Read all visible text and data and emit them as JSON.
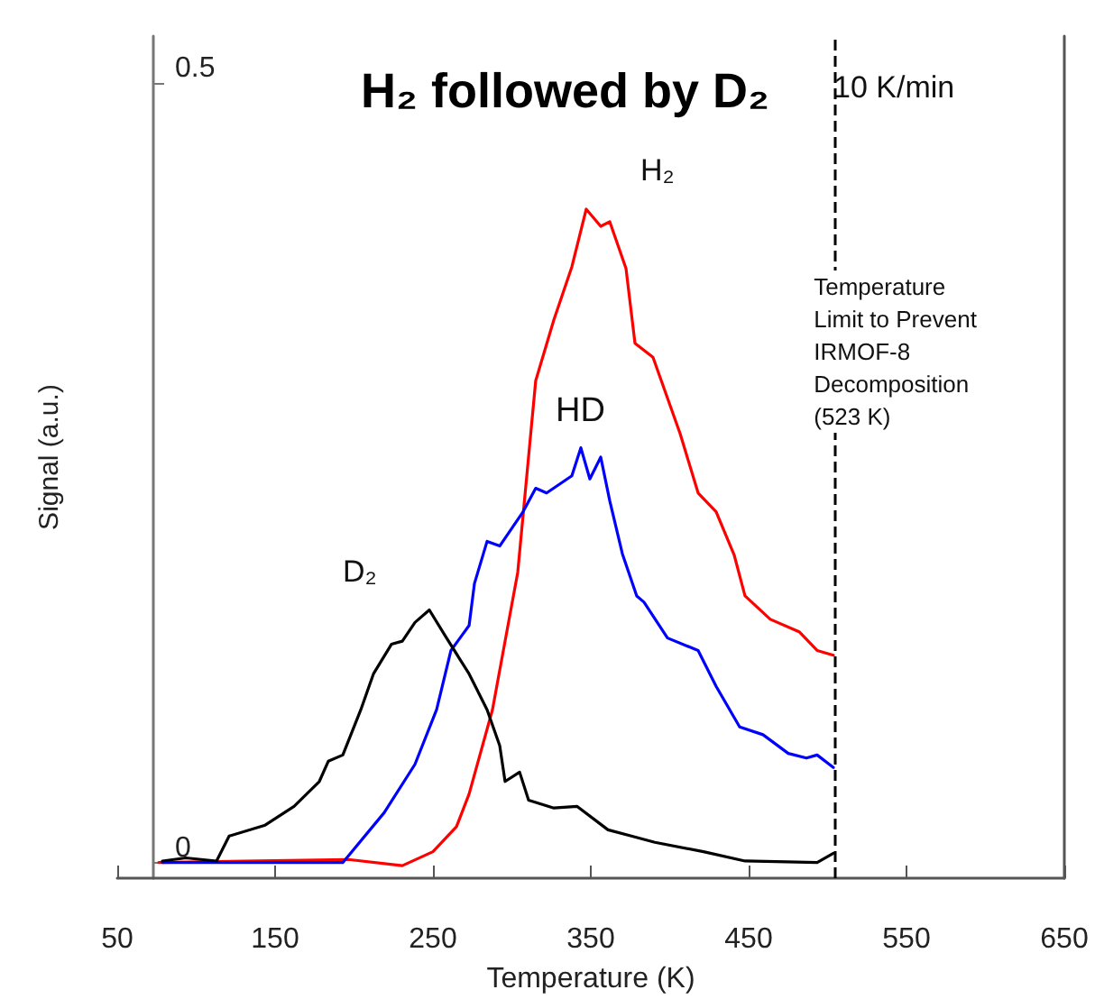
{
  "chart_data": {
    "type": "line",
    "title": "H₂ followed by D₂",
    "xlabel": "Temperature (K)",
    "ylabel": "Signal (a.u.)",
    "annotations": [
      "10 K/min"
    ],
    "xlim": [
      50,
      650
    ],
    "xticks": [
      50,
      150,
      250,
      350,
      450,
      550,
      650
    ],
    "ylim": [
      -0.01,
      0.53
    ],
    "yticks": [
      0,
      0.5
    ],
    "grid": false,
    "legend": false,
    "marker": "none",
    "line_style": "solid",
    "ref_lines": [
      {
        "axis": "x",
        "value": 505,
        "label": "Temperature\nLimit to Prevent\nIRMOF-8\nDecomposition\n(523 K)",
        "color": "#000000",
        "line_style": "dashed"
      }
    ],
    "series": [
      {
        "name": "H₂",
        "color": "#ff0000",
        "x": [
          76.3,
          196.3,
          230.6,
          250,
          264.9,
          272.9,
          287.7,
          303.7,
          315.1,
          326.6,
          338,
          347.1,
          356.3,
          362,
          372.3,
          378,
          389.4,
          406.6,
          418,
          429.4,
          440.9,
          447.7,
          463.7,
          482,
          493.4,
          503.7
        ],
        "values": [
          0,
          0.002,
          -0.002,
          0.007,
          0.023,
          0.044,
          0.098,
          0.186,
          0.309,
          0.348,
          0.382,
          0.419,
          0.408,
          0.411,
          0.381,
          0.333,
          0.324,
          0.275,
          0.237,
          0.225,
          0.197,
          0.171,
          0.156,
          0.148,
          0.136,
          0.133
        ]
      },
      {
        "name": "HD",
        "color": "#0000ff",
        "x": [
          78.6,
          120.9,
          192.9,
          219.1,
          238.6,
          252.3,
          261.4,
          272.9,
          276.3,
          284.3,
          292.3,
          307.1,
          315.1,
          322,
          338,
          343.7,
          349.4,
          356.3,
          362,
          370,
          379.1,
          383.7,
          398.6,
          418,
          429.4,
          444.3,
          459.1,
          475.1,
          486.6,
          493.4,
          503.7
        ],
        "values": [
          0,
          0,
          0,
          0.032,
          0.063,
          0.098,
          0.136,
          0.152,
          0.179,
          0.206,
          0.203,
          0.225,
          0.24,
          0.237,
          0.248,
          0.266,
          0.246,
          0.26,
          0.232,
          0.198,
          0.171,
          0.167,
          0.144,
          0.136,
          0.113,
          0.087,
          0.082,
          0.07,
          0.067,
          0.069,
          0.061
        ]
      },
      {
        "name": "D₂",
        "color": "#000000",
        "x": [
          78.6,
          93.4,
          112.9,
          120.9,
          143.7,
          162,
          178,
          183.7,
          192.9,
          204.3,
          212.3,
          223.7,
          230.6,
          238.6,
          247.7,
          258,
          272.9,
          284.3,
          292.3,
          295.7,
          304.9,
          310.6,
          326.6,
          341.4,
          360.9,
          375.7,
          390.6,
          421.4,
          447.7,
          493.4,
          503.7
        ],
        "values": [
          0.001,
          0.003,
          0.001,
          0.017,
          0.024,
          0.036,
          0.052,
          0.065,
          0.069,
          0.098,
          0.121,
          0.14,
          0.142,
          0.154,
          0.162,
          0.145,
          0.121,
          0.098,
          0.075,
          0.052,
          0.058,
          0.04,
          0.035,
          0.036,
          0.021,
          0.017,
          0.013,
          0.007,
          0.001,
          0,
          0.006
        ]
      }
    ]
  }
}
